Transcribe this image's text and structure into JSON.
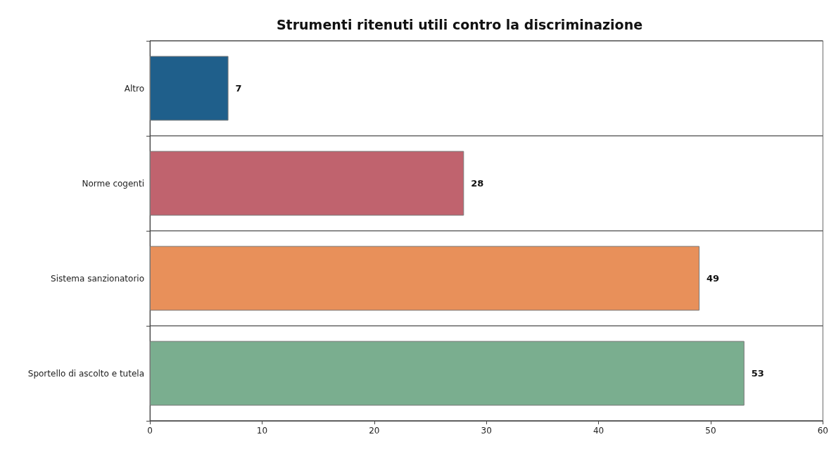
{
  "chart_data": {
    "type": "bar",
    "orientation": "horizontal",
    "title": "Strumenti ritenuti utili contro la discriminazione",
    "categories": [
      "Altro",
      "Norme cogenti",
      "Sistema sanzionatorio",
      "Sportello di ascolto e tutela"
    ],
    "values": [
      7,
      28,
      49,
      53
    ],
    "colors": [
      "#1f5f8b",
      "#c0636e",
      "#e8905a",
      "#7aae8f"
    ],
    "xlim": [
      0,
      60
    ],
    "xticks": [
      0,
      10,
      20,
      30,
      40,
      50,
      60
    ],
    "grid": "y",
    "data_labels": true
  }
}
